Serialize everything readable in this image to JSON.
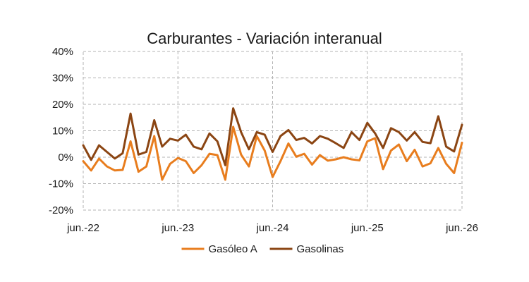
{
  "chart_data": {
    "type": "line",
    "title": "Carburantes - Variación interanual",
    "xlabel": "",
    "ylabel": "",
    "ylim": [
      -20,
      40
    ],
    "y_ticks": [
      {
        "value": 40,
        "label": "40%"
      },
      {
        "value": 30,
        "label": "30%"
      },
      {
        "value": 20,
        "label": "20%"
      },
      {
        "value": 10,
        "label": "10%"
      },
      {
        "value": 0,
        "label": "0%"
      },
      {
        "value": -10,
        "label": "-10%"
      },
      {
        "value": -20,
        "label": "-20%"
      }
    ],
    "x_ticks": [
      {
        "index": 0,
        "label": "jun.-22"
      },
      {
        "index": 12,
        "label": "jun.-23"
      },
      {
        "index": 24,
        "label": "jun.-24"
      },
      {
        "index": 36,
        "label": "jun.-25"
      },
      {
        "index": 48,
        "label": "jun.-26"
      }
    ],
    "grid": true,
    "legend_position": "bottom",
    "series": [
      {
        "name": "Gasóleo A",
        "color": "#e87d1e",
        "values": [
          -1.5,
          -5,
          -0.5,
          -3.5,
          -5,
          -4.8,
          6,
          -5.5,
          -3.5,
          8,
          -8.5,
          -2.5,
          -0.3,
          -1.5,
          -6,
          -3,
          1.3,
          0.8,
          -8.5,
          11.5,
          1,
          -3.5,
          8,
          2.5,
          -7.5,
          -1.5,
          5.2,
          0.2,
          1.3,
          -2.8,
          0.8,
          -1.3,
          -0.8,
          0,
          -0.8,
          -1.2,
          6,
          7.2,
          -4.5,
          2.5,
          4.8,
          -1.5,
          2.8,
          -3.5,
          -2.3,
          3.5,
          -2.5,
          -6,
          5.5
        ]
      },
      {
        "name": "Gasolinas",
        "color": "#8b4513",
        "values": [
          4.5,
          -1,
          4.5,
          2,
          -0.5,
          1.5,
          16.5,
          1,
          2,
          14,
          4,
          7,
          6.3,
          8.5,
          4,
          3,
          9,
          6,
          -3,
          18.5,
          9.5,
          3,
          9.5,
          8.5,
          2,
          8,
          10.3,
          6.5,
          7.3,
          5.2,
          8,
          7,
          5.3,
          3.5,
          9.5,
          6.5,
          13,
          9,
          3.5,
          11,
          9.5,
          6.3,
          9.5,
          5.8,
          5.3,
          15.5,
          4,
          2.2,
          12.3
        ]
      }
    ]
  }
}
